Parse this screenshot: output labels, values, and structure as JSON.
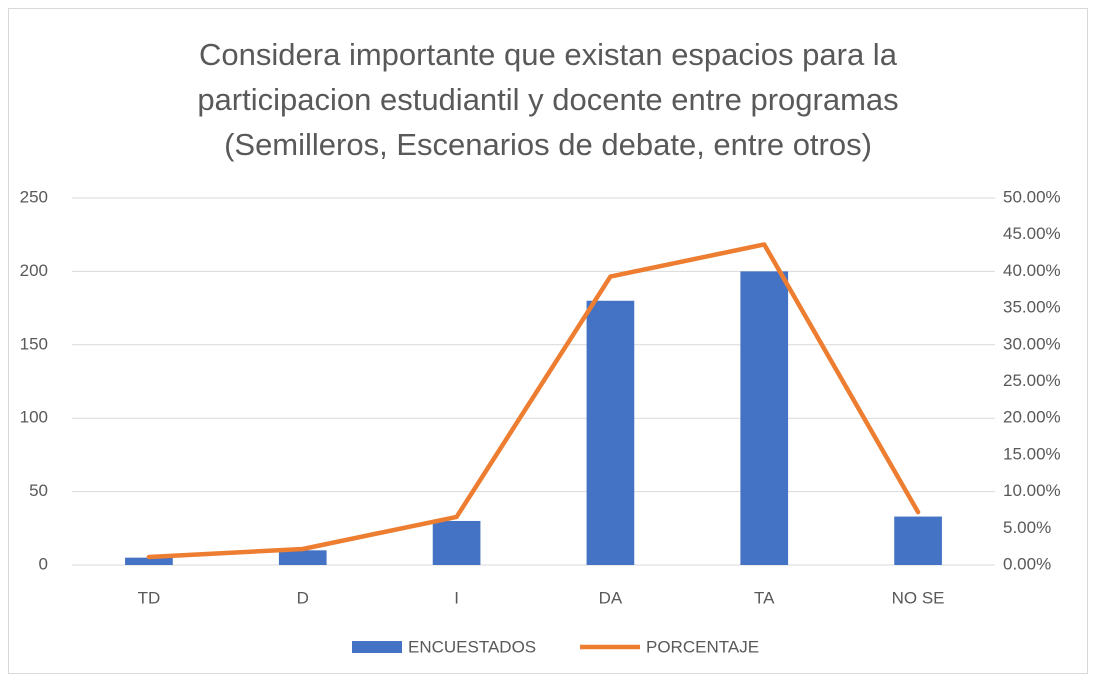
{
  "chart_data": {
    "type": "bar",
    "title": [
      "Considera importante que existan espacios para la",
      "participacion estudiantil y docente entre programas",
      "(Semilleros, Escenarios de debate, entre otros)"
    ],
    "categories": [
      "TD",
      "D",
      "I",
      "DA",
      "TA",
      "NO SE"
    ],
    "series": [
      {
        "name": "ENCUESTADOS",
        "type": "bar",
        "color": "#4472c4",
        "values": [
          5,
          10,
          30,
          180,
          200,
          33
        ]
      },
      {
        "name": "PORCENTAJE",
        "type": "line",
        "axis": "y2",
        "color": "#ed7d31",
        "values": [
          1.09,
          2.18,
          6.55,
          39.3,
          43.67,
          7.2
        ]
      }
    ],
    "ylim": [
      0,
      250
    ],
    "yticks": [
      0,
      50,
      100,
      150,
      200,
      250
    ],
    "y2lim": [
      0,
      50
    ],
    "y2ticks": [
      {
        "value": 0,
        "label": "0.00%"
      },
      {
        "value": 5,
        "label": "5.00%"
      },
      {
        "value": 10,
        "label": "10.00%"
      },
      {
        "value": 15,
        "label": "15.00%"
      },
      {
        "value": 20,
        "label": "20.00%"
      },
      {
        "value": 25,
        "label": "25.00%"
      },
      {
        "value": 30,
        "label": "30.00%"
      },
      {
        "value": 35,
        "label": "35.00%"
      },
      {
        "value": 40,
        "label": "40.00%"
      },
      {
        "value": 45,
        "label": "45.00%"
      },
      {
        "value": 50,
        "label": "50.00%"
      }
    ],
    "grid": true,
    "legend": "bottom"
  }
}
